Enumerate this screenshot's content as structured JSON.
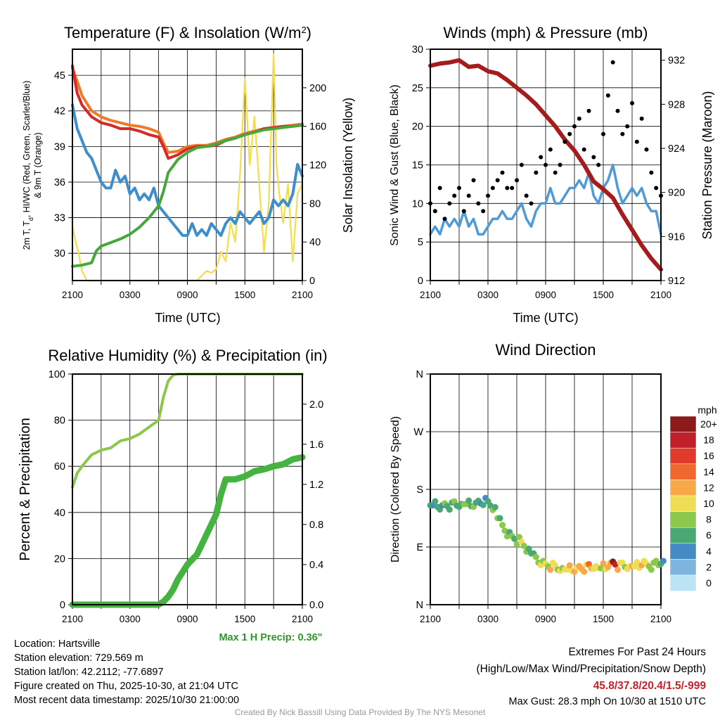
{
  "chart_data": [
    {
      "type": "line",
      "title": "Temperature (F) & Insolation (W/m2)",
      "title_main": "Temperature (F) & Insolation (W/m",
      "title_sup": "2",
      "title_end": ")",
      "xlabel": "Time (UTC)",
      "ylabel_line1": "2m T, T",
      "ylabel_sub": "d",
      "ylabel_line1b": ", HI/WC (Red, Green, Scarlet/Blue)",
      "ylabel_line2": "& 9m T (Orange)",
      "y2label": "Solar Insolation (Yellow)",
      "xticks": [
        "2100",
        "0300",
        "0900",
        "1500",
        "2100"
      ],
      "yticks": [
        30,
        33,
        36,
        39,
        42,
        45
      ],
      "y2ticks": [
        0,
        40,
        80,
        120,
        160,
        200
      ],
      "ylim": [
        27.7,
        47.2
      ],
      "y2lim": [
        0,
        240
      ],
      "series": [
        {
          "name": "9m T",
          "color": "#f07a2a",
          "axis": "left",
          "x": [
            0,
            0.5,
            1,
            2,
            3,
            4,
            5,
            6,
            7,
            8,
            9,
            9.5,
            10,
            11,
            12,
            13,
            14,
            15,
            16,
            17,
            18,
            19,
            20,
            21,
            22,
            23,
            24
          ],
          "values": [
            45.6,
            44.5,
            43.3,
            42.0,
            41.5,
            41.2,
            41.0,
            40.8,
            40.7,
            40.5,
            40.2,
            39.3,
            38.5,
            38.6,
            39.0,
            39.1,
            39.1,
            39.3,
            39.6,
            39.8,
            40.1,
            40.3,
            40.5,
            40.6,
            40.7,
            40.8,
            40.9
          ]
        },
        {
          "name": "2m T",
          "color": "#d42a2a",
          "axis": "left",
          "x": [
            0,
            0.5,
            1,
            2,
            3,
            4,
            5,
            6,
            7,
            8,
            9,
            9.5,
            10,
            11,
            12,
            13,
            14,
            15,
            16,
            17,
            18,
            19,
            20,
            21,
            22,
            23,
            24
          ],
          "values": [
            45.8,
            43.5,
            42.5,
            41.5,
            41.0,
            40.8,
            40.5,
            40.5,
            40.3,
            40.0,
            39.8,
            39.0,
            38.0,
            38.3,
            38.8,
            39.0,
            39.0,
            39.1,
            39.5,
            39.7,
            40.0,
            40.2,
            40.5,
            40.6,
            40.7,
            40.7,
            40.8
          ]
        },
        {
          "name": "Dew point",
          "color": "#44a83c",
          "axis": "left",
          "x": [
            0,
            1,
            2,
            2.5,
            3,
            4,
            5,
            6,
            7,
            8,
            9,
            9.5,
            10,
            11,
            12,
            13,
            14,
            15,
            16,
            17,
            18,
            19,
            20,
            21,
            22,
            23,
            24
          ],
          "values": [
            28.9,
            29.0,
            29.2,
            30.2,
            30.6,
            30.9,
            31.2,
            31.6,
            32.2,
            33.0,
            34.0,
            35.2,
            36.8,
            37.9,
            38.5,
            38.9,
            39.0,
            39.2,
            39.5,
            39.7,
            40.0,
            40.2,
            40.4,
            40.5,
            40.6,
            40.7,
            40.8
          ]
        },
        {
          "name": "Wind chill",
          "color": "#3d8ecb",
          "axis": "left",
          "x": [
            0,
            0.5,
            1,
            1.5,
            2,
            2.5,
            3,
            3.5,
            4,
            4.5,
            5,
            5.5,
            6,
            6.5,
            7,
            7.5,
            8,
            8.5,
            9,
            9.5,
            10,
            10.5,
            11,
            11.5,
            12,
            12.5,
            13,
            13.5,
            14,
            14.5,
            15,
            15.5,
            16,
            16.5,
            17,
            17.5,
            18,
            18.5,
            19,
            19.5,
            20,
            20.5,
            21,
            21.5,
            22,
            22.5,
            23,
            23.5,
            24
          ],
          "values": [
            42.5,
            40.5,
            39.5,
            38.5,
            38.0,
            37.0,
            36.0,
            35.5,
            35.5,
            37.0,
            36.0,
            36.5,
            35.0,
            35.5,
            34.5,
            35.0,
            34.5,
            35.5,
            34.0,
            33.5,
            33.0,
            32.5,
            32.0,
            31.5,
            31.5,
            32.5,
            31.5,
            32.0,
            31.5,
            32.5,
            32.0,
            31.5,
            32.5,
            33.0,
            32.5,
            33.5,
            33.0,
            32.5,
            33.0,
            33.5,
            32.5,
            33.0,
            34.5,
            34.0,
            34.5,
            34.0,
            35.0,
            37.5,
            36.5
          ]
        },
        {
          "name": "Solar insolation",
          "color": "#f5dc4a",
          "axis": "right",
          "x": [
            0,
            0.3,
            0.6,
            1,
            1.5,
            2,
            4,
            6,
            8,
            10,
            12,
            13,
            13.5,
            14,
            14.5,
            15,
            15.5,
            16,
            16.5,
            17,
            17.5,
            18,
            18.5,
            19,
            19.5,
            20,
            20.5,
            21,
            21.3,
            21.6,
            22,
            22.5,
            23,
            23.5,
            24
          ],
          "values": [
            56,
            42,
            30,
            10,
            0,
            0,
            0,
            0,
            0,
            0,
            0,
            0,
            5,
            10,
            8,
            12,
            30,
            20,
            60,
            40,
            110,
            210,
            120,
            170,
            100,
            30,
            80,
            235,
            120,
            90,
            60,
            100,
            20,
            90,
            100
          ]
        }
      ]
    },
    {
      "type": "line",
      "title": "Winds (mph) & Pressure (mb)",
      "xlabel": "Time (UTC)",
      "ylabel": "Sonic Wind & Gust (Blue, Black)",
      "y2label": "Station Pressure (Maroon)",
      "xticks": [
        "2100",
        "0300",
        "0900",
        "1500",
        "2100"
      ],
      "yticks": [
        0,
        5,
        10,
        15,
        20,
        25,
        30
      ],
      "y2ticks": [
        912,
        916,
        920,
        924,
        928,
        932
      ],
      "ylim": [
        0,
        30
      ],
      "y2lim": [
        912,
        933
      ],
      "series": [
        {
          "name": "Sonic wind",
          "color": "#4f9bd8",
          "axis": "left",
          "x_step_hours": 0.5,
          "values": [
            6,
            7,
            6,
            8,
            7,
            8,
            7,
            9,
            7,
            8,
            6,
            6,
            7,
            8,
            8,
            9,
            8,
            8,
            9,
            10,
            8,
            7,
            9,
            10,
            10,
            12,
            10,
            10,
            11,
            12,
            12,
            13,
            12,
            14,
            11,
            10,
            12,
            13,
            15,
            12,
            10,
            11,
            12,
            11,
            12,
            10,
            9,
            9,
            6
          ]
        },
        {
          "name": "Gust",
          "color": "#000000",
          "axis": "left",
          "type": "scatter",
          "x_step_hours": 0.5,
          "values": [
            10,
            9,
            12,
            8,
            10,
            11,
            12,
            9,
            11,
            13,
            10,
            9,
            11,
            12,
            13,
            14,
            12,
            12,
            13,
            15,
            11,
            10,
            14,
            16,
            15,
            17,
            14,
            15,
            18,
            19,
            20,
            21,
            17,
            22,
            16,
            15,
            19,
            24,
            28.3,
            22,
            19,
            20,
            23,
            18,
            21,
            17,
            14,
            12,
            11
          ]
        },
        {
          "name": "Pressure",
          "color": "#a51c1c",
          "axis": "right",
          "x": [
            0,
            1,
            2,
            3,
            4,
            5,
            6,
            7,
            8,
            9,
            10,
            11,
            12,
            13,
            14,
            15,
            16,
            17,
            18,
            19,
            20,
            21,
            22,
            23,
            24
          ],
          "values": [
            931.5,
            931.7,
            931.8,
            932.0,
            931.4,
            931.5,
            931.0,
            930.8,
            930.2,
            929.5,
            928.8,
            928.0,
            927.0,
            926.0,
            924.8,
            923.8,
            922.5,
            921.0,
            920.3,
            919.5,
            918.0,
            916.6,
            915.2,
            914.0,
            913.0
          ]
        }
      ]
    },
    {
      "type": "line",
      "title": "Relative Humidity (%) & Precipitation (in)",
      "ylabel": "Percent & Precipitation",
      "xticks": [
        "2100",
        "0300",
        "0900",
        "1500",
        "2100"
      ],
      "yticks": [
        0,
        20,
        40,
        60,
        80,
        100
      ],
      "y2ticks": [
        "0.0",
        "0.4",
        "0.8",
        "1.2",
        "1.6",
        "2.0"
      ],
      "ylim": [
        0,
        100
      ],
      "y2lim": [
        0,
        2.3
      ],
      "annotation": "Max 1 H Precip: 0.36\"",
      "series": [
        {
          "name": "Relative humidity",
          "color": "#8cc84b",
          "axis": "left",
          "x": [
            0,
            0.5,
            1,
            2,
            3,
            4,
            5,
            6,
            7,
            8,
            9,
            9.5,
            10,
            10.5,
            11,
            12,
            24
          ],
          "values": [
            51,
            57,
            60,
            65,
            67,
            68,
            71,
            72,
            74,
            77,
            80,
            90,
            97,
            99.5,
            100,
            100,
            100
          ]
        },
        {
          "name": "Precipitation",
          "color": "#44b340",
          "axis": "right",
          "x": [
            0,
            9,
            9.5,
            10,
            10.5,
            11,
            12,
            13,
            14,
            15,
            15.5,
            16,
            17,
            18,
            19,
            20,
            21,
            22,
            23,
            24
          ],
          "values": [
            0,
            0,
            0.03,
            0.08,
            0.15,
            0.25,
            0.4,
            0.5,
            0.7,
            0.9,
            1.1,
            1.25,
            1.25,
            1.28,
            1.33,
            1.35,
            1.38,
            1.4,
            1.45,
            1.47
          ]
        }
      ]
    },
    {
      "type": "scatter",
      "title": "Wind Direction",
      "ylabel": "Direction (Colored By Speed)",
      "xticks": [
        "2100",
        "0300",
        "0900",
        "1500",
        "2100"
      ],
      "yticks": [
        "N",
        "E",
        "S",
        "W",
        "N"
      ],
      "ylim": [
        0,
        360
      ],
      "x_step_hours": 0.5,
      "directions": [
        155,
        157,
        152,
        156,
        154,
        158,
        155,
        157,
        158,
        156,
        160,
        161,
        158,
        150,
        135,
        120,
        110,
        105,
        100,
        95,
        85,
        80,
        70,
        65,
        62,
        60,
        58,
        55,
        55,
        57,
        55,
        58,
        57,
        60,
        58,
        57,
        60,
        62,
        65,
        60,
        62,
        58,
        60,
        62,
        65,
        62,
        60,
        65,
        66
      ],
      "speeds": [
        6,
        7,
        6,
        8,
        7,
        8,
        7,
        9,
        7,
        8,
        6,
        6,
        7,
        8,
        8,
        9,
        8,
        8,
        9,
        10,
        8,
        7,
        9,
        10,
        10,
        12,
        10,
        10,
        11,
        12,
        12,
        13,
        12,
        14,
        11,
        10,
        12,
        13,
        20,
        12,
        10,
        11,
        12,
        11,
        12,
        10,
        9,
        9,
        6
      ],
      "colorbar": {
        "title": "mph",
        "labels": [
          "20+",
          "18",
          "16",
          "14",
          "12",
          "10",
          "8",
          "6",
          "4",
          "2",
          "0"
        ],
        "colors": [
          "#8b1a1a",
          "#c0202a",
          "#e03a2c",
          "#f06830",
          "#f9a848",
          "#eedd55",
          "#8cc84b",
          "#4aa872",
          "#4589c5",
          "#7db5e0",
          "#bde3f7"
        ]
      }
    }
  ],
  "footer": {
    "location": "Location: Hartsville",
    "elevation": "Station elevation: 729.569 m",
    "latlon": "Station lat/lon: 42.2112; -77.6897",
    "created": "Figure created on Thu, 2025-10-30, at 21:04 UTC",
    "recent": "Most recent data timestamp: 2025/10/30 21:00:00",
    "extremes_title": "Extremes For Past 24 Hours",
    "extremes_sub": "(High/Low/Max Wind/Precipitation/Snow Depth)",
    "extremes_values": "45.8/37.8/20.4/1.5/-999",
    "max_gust": "Max Gust: 28.3 mph On 10/30 at 1510 UTC",
    "credit": "Created By Nick Bassill Using Data Provided By The NYS Mesonet"
  }
}
